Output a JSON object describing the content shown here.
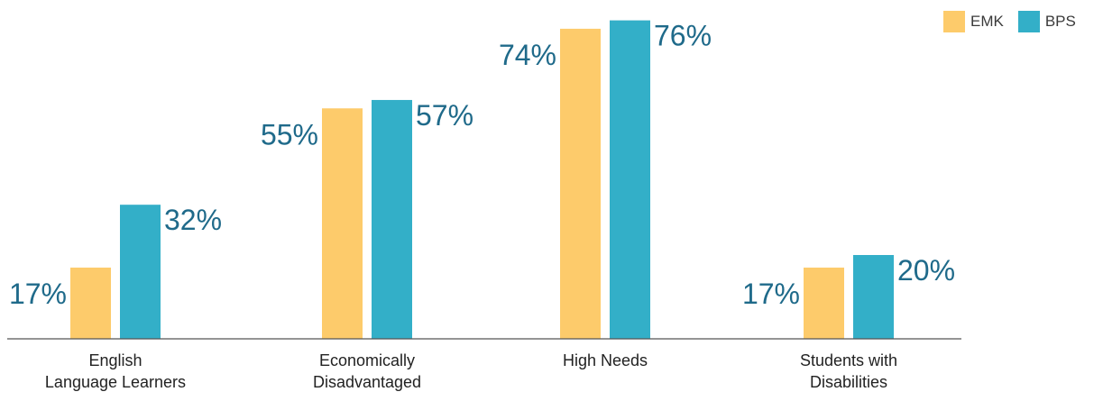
{
  "colors": {
    "emk": "#FDCB6B",
    "bps": "#33AFC8",
    "value_text": "#1F6A8A",
    "axis": "#555555"
  },
  "legend": [
    {
      "label": "EMK",
      "color": "#FDCB6B"
    },
    {
      "label": "BPS",
      "color": "#33AFC8"
    }
  ],
  "chart_data": {
    "type": "bar",
    "title": "",
    "xlabel": "",
    "ylabel": "",
    "ylim": [
      0,
      80
    ],
    "grid": false,
    "legend_position": "top-right",
    "categories": [
      [
        "English",
        "Language Learners"
      ],
      [
        "Economically",
        "Disadvantaged"
      ],
      [
        "High Needs"
      ],
      [
        "Students with",
        "Disabilities"
      ]
    ],
    "series": [
      {
        "name": "EMK",
        "values": [
          17,
          55,
          74,
          17
        ],
        "labels": [
          "17%",
          "55%",
          "74%",
          "17%"
        ]
      },
      {
        "name": "BPS",
        "values": [
          32,
          57,
          76,
          20
        ],
        "labels": [
          "32%",
          "57%",
          "76%",
          "20%"
        ]
      }
    ]
  }
}
